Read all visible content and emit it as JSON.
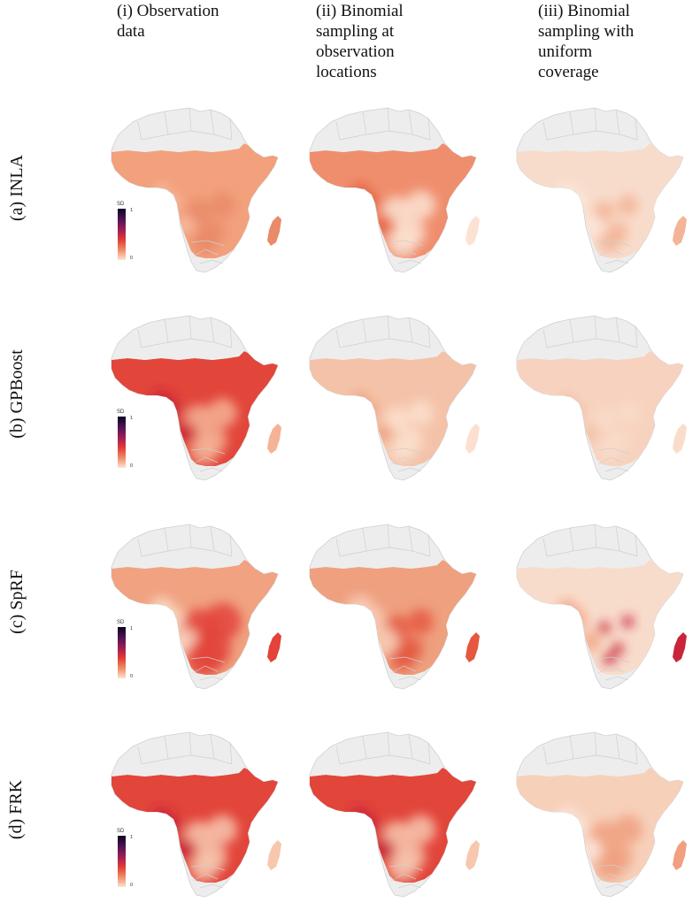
{
  "column_headers": [
    "(i) Observation\ndata",
    "(ii) Binomial\nsampling at\nobservation\nlocations",
    "(iii) Binomial\nsampling with\nuniform\ncoverage"
  ],
  "row_labels": [
    "(a) INLA",
    "(b) GPBoost",
    "(c) SpRF",
    "(d) FRK"
  ],
  "legend": {
    "title": "SD",
    "max_label": "1",
    "min_label": "0",
    "colors": [
      "#0b0420",
      "#4d1254",
      "#9b1c55",
      "#df3a36",
      "#f08a62",
      "#fbe3d2"
    ]
  },
  "map_colors": {
    "land_gray": "#ededed",
    "border_gray": "#cfcfcf",
    "light": "#f8d6c1",
    "medium": "#f2a07a",
    "strong": "#e8563f",
    "dark": "#9b1c55"
  },
  "panels": [
    [
      {
        "base": "#f3a07d",
        "blobs": [
          {
            "c": "#e98a68",
            "r": 0.06
          },
          {
            "c": "#f7c0a2",
            "r": 0.04
          }
        ]
      },
      {
        "base": "#ef8e6d",
        "blobs": [
          {
            "c": "#fbe2d2",
            "r": 0.07
          },
          {
            "c": "#e6603f",
            "r": 0.05
          }
        ]
      },
      {
        "base": "#f8dccb",
        "blobs": [
          {
            "c": "#f3b497",
            "r": 0.05
          },
          {
            "c": "#fbe8dc",
            "r": 0.05
          }
        ]
      }
    ],
    [
      {
        "base": "#e2453a",
        "blobs": [
          {
            "c": "#f5b295",
            "r": 0.07
          },
          {
            "c": "#c9213a",
            "r": 0.05
          }
        ]
      },
      {
        "base": "#f4c2a8",
        "blobs": [
          {
            "c": "#fbe0cf",
            "r": 0.06
          },
          {
            "c": "#ee9d7a",
            "r": 0.04
          }
        ]
      },
      {
        "base": "#f7d3bf",
        "blobs": [
          {
            "c": "#f9dccb",
            "r": 0.05
          },
          {
            "c": "#f2bfa4",
            "r": 0.04
          }
        ]
      }
    ],
    [
      {
        "base": "#f0a281",
        "blobs": [
          {
            "c": "#e3433a",
            "r": 0.09
          },
          {
            "c": "#fbd9c6",
            "r": 0.06
          }
        ]
      },
      {
        "base": "#eea07f",
        "blobs": [
          {
            "c": "#e5573f",
            "r": 0.06
          },
          {
            "c": "#f8cdb6",
            "r": 0.07
          }
        ]
      },
      {
        "base": "#f8dccb",
        "blobs": [
          {
            "c": "#c9253a",
            "r": 0.03
          },
          {
            "c": "#f2a88a",
            "r": 0.05
          }
        ]
      }
    ],
    [
      {
        "base": "#e2453a",
        "blobs": [
          {
            "c": "#f7c7ae",
            "r": 0.07
          },
          {
            "c": "#c9213a",
            "r": 0.05
          }
        ]
      },
      {
        "base": "#e2453a",
        "blobs": [
          {
            "c": "#f7c7ae",
            "r": 0.07
          },
          {
            "c": "#c9213a",
            "r": 0.05
          }
        ]
      },
      {
        "base": "#f7d0ba",
        "blobs": [
          {
            "c": "#f0a080",
            "r": 0.07
          },
          {
            "c": "#fbe6da",
            "r": 0.05
          }
        ]
      }
    ]
  ]
}
